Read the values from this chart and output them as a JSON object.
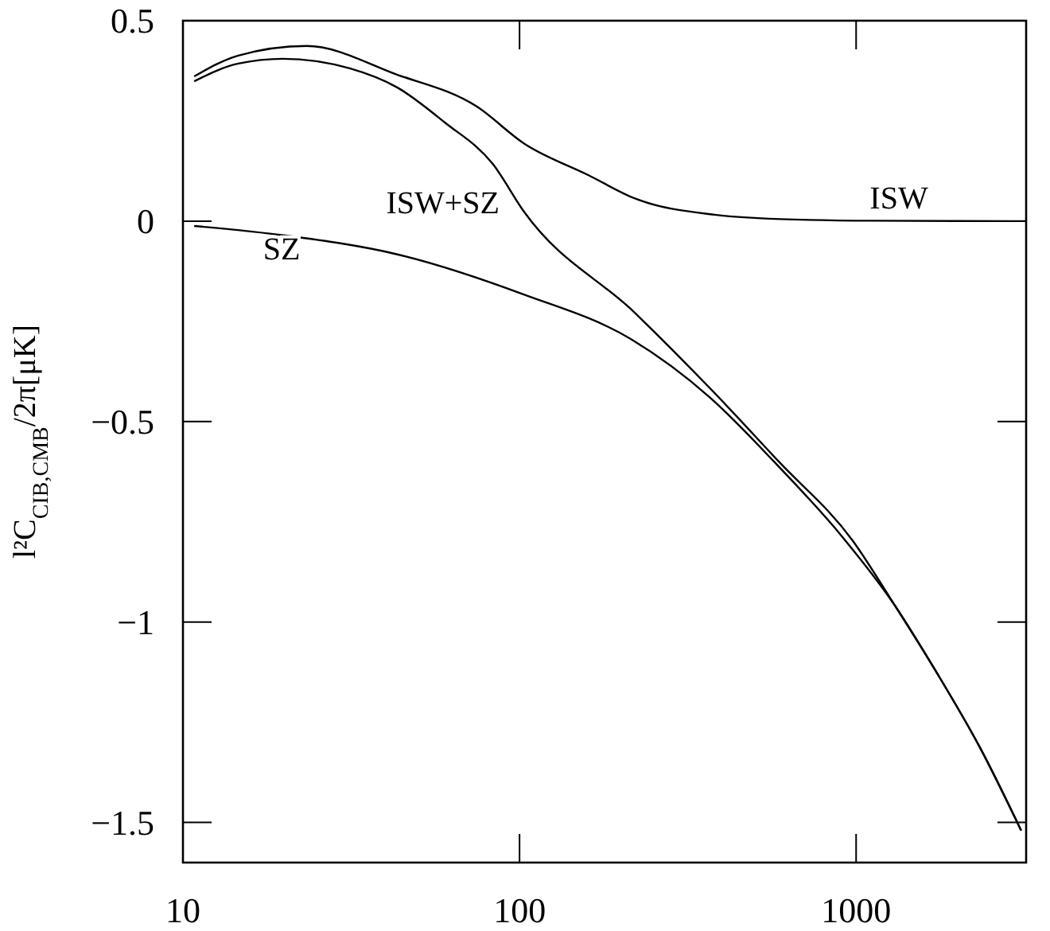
{
  "chart_data": {
    "type": "line",
    "ylabel": "l²C$_{CIB,CMB}$/2π[μK]",
    "log": "x",
    "xlim": [
      10,
      3200
    ],
    "ylim": [
      -1.6,
      0.5
    ],
    "xticks": [
      10,
      100,
      1000
    ],
    "yticks": [
      {
        "value": -1.5,
        "label": "−1.5"
      },
      {
        "value": -1,
        "label": "−1"
      },
      {
        "value": -0.5,
        "label": "−0.5"
      },
      0,
      0.5
    ],
    "series": [
      {
        "name": "ISW",
        "color": "#000000",
        "x": [
          10.8,
          14.6,
          23.3,
          43.4,
          74.6,
          103,
          160,
          221,
          380,
          655,
          1125,
          3200
        ],
        "values": [
          0.361,
          0.413,
          0.437,
          0.365,
          0.286,
          0.194,
          0.115,
          0.056,
          0.016,
          0.004,
          0.001,
          0
        ]
      },
      {
        "name": "ISW+SZ",
        "color": "#000000",
        "x": [
          10.8,
          14.6,
          19.8,
          31.3,
          43.4,
          60,
          83.2,
          103,
          221,
          380,
          588,
          979,
          1297,
          1738,
          2333,
          3093
        ],
        "values": [
          0.349,
          0.393,
          0.405,
          0.381,
          0.333,
          0.246,
          0.143,
          0.024,
          -0.23,
          -0.429,
          -0.599,
          -0.798,
          -0.956,
          -1.127,
          -1.313,
          -1.52
        ]
      },
      {
        "name": "SZ",
        "color": "#000000",
        "x": [
          10.8,
          20.2,
          43.4,
          103,
          214,
          368,
          569,
          907,
          1297,
          1738,
          2333,
          3093
        ],
        "values": [
          -0.012,
          -0.036,
          -0.083,
          -0.183,
          -0.294,
          -0.44,
          -0.599,
          -0.786,
          -0.956,
          -1.127,
          -1.313,
          -1.52
        ]
      }
    ]
  }
}
